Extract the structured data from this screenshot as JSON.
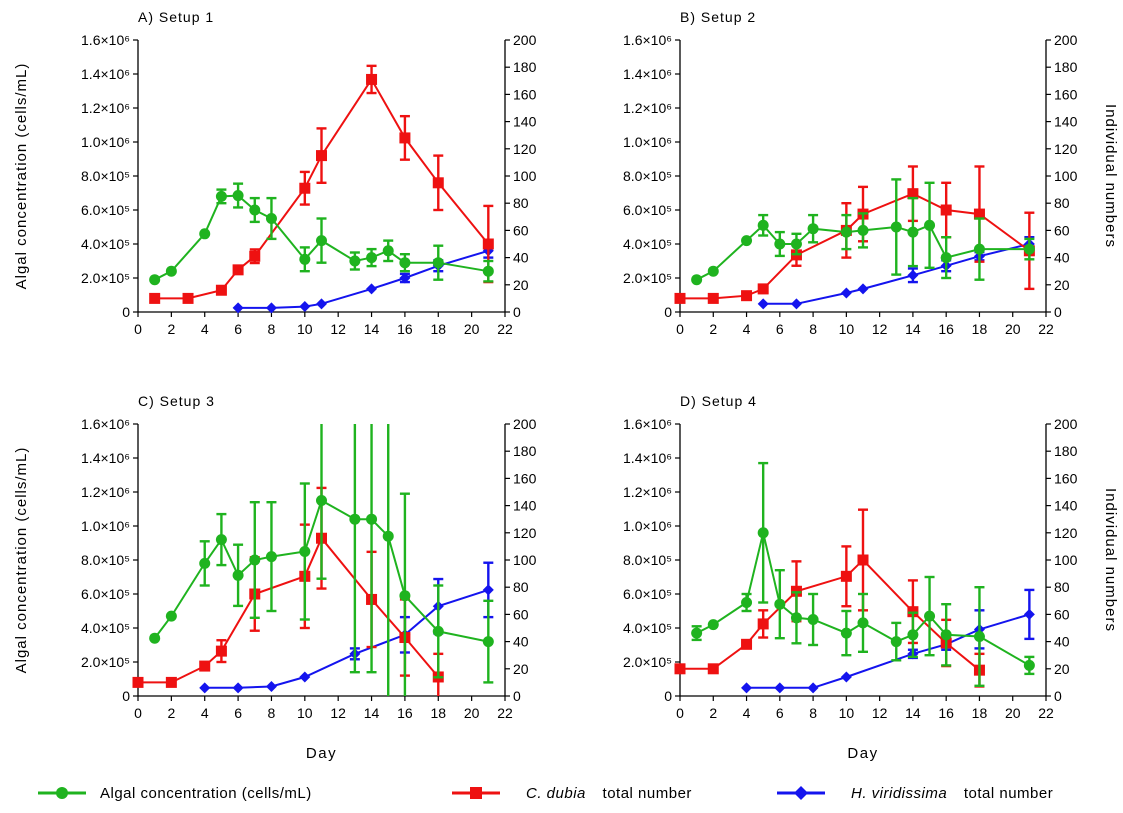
{
  "chart_data": [
    {
      "type": "line",
      "title": "A) Setup 1",
      "xlabel": "",
      "ylabel_left": "Algal concentration (cells/mL)",
      "ylabel_right": "",
      "xlim": [
        0,
        22
      ],
      "ylim_left": [
        0,
        1600000
      ],
      "ylim_right": [
        0,
        200
      ],
      "x_ticks": [
        "0",
        "2",
        "4",
        "6",
        "8",
        "10",
        "12",
        "14",
        "16",
        "18",
        "20",
        "22"
      ],
      "y_left_ticks": [
        "0",
        "2.0×10⁵",
        "4.0×10⁵",
        "6.0×10⁵",
        "8.0×10⁵",
        "1.0×10⁶",
        "1.2×10⁶",
        "1.4×10⁶",
        "1.6×10⁶"
      ],
      "y_right_ticks": [
        "0",
        "20",
        "40",
        "60",
        "80",
        "100",
        "120",
        "140",
        "160",
        "180",
        "200"
      ],
      "series": [
        {
          "name": "Algal concentration (cells/mL)",
          "axis": "left",
          "x": [
            1,
            2,
            4,
            5,
            6,
            7,
            8,
            10,
            11,
            13,
            14,
            15,
            16,
            18,
            21
          ],
          "y": [
            190000,
            240000,
            460000,
            680000,
            685000,
            600000,
            550000,
            310000,
            420000,
            300000,
            320000,
            360000,
            290000,
            290000,
            240000
          ],
          "err": [
            0,
            0,
            0,
            40000,
            70000,
            70000,
            120000,
            70000,
            130000,
            50000,
            50000,
            60000,
            50000,
            100000,
            60000
          ]
        },
        {
          "name": "C. dubia total number",
          "axis": "right",
          "x": [
            1,
            3,
            5,
            6,
            7,
            10,
            11,
            14,
            16,
            18,
            21
          ],
          "y": [
            10,
            10,
            16,
            31,
            41,
            91,
            115,
            171,
            128,
            95,
            50
          ],
          "err": [
            0,
            0,
            0,
            0,
            5,
            12,
            20,
            10,
            16,
            20,
            28
          ]
        },
        {
          "name": "H. viridissima total number",
          "axis": "right",
          "x": [
            6,
            8,
            10,
            11,
            14,
            16,
            18,
            21
          ],
          "y": [
            3,
            3,
            4,
            6,
            17,
            25,
            34,
            45
          ],
          "err": [
            0,
            0,
            0,
            0,
            0,
            3,
            4,
            5
          ]
        }
      ]
    },
    {
      "type": "line",
      "title": "B) Setup 2",
      "xlabel": "",
      "ylabel_left": "",
      "ylabel_right": "Individual numbers",
      "xlim": [
        0,
        22
      ],
      "ylim_left": [
        0,
        1600000
      ],
      "ylim_right": [
        0,
        200
      ],
      "x_ticks": [
        "0",
        "2",
        "4",
        "6",
        "8",
        "10",
        "12",
        "14",
        "16",
        "18",
        "20",
        "22"
      ],
      "y_left_ticks": [
        "0",
        "2.0×10⁵",
        "4.0×10⁵",
        "6.0×10⁵",
        "8.0×10⁵",
        "1.0×10⁶",
        "1.2×10⁶",
        "1.4×10⁶",
        "1.6×10⁶"
      ],
      "y_right_ticks": [
        "0",
        "20",
        "40",
        "60",
        "80",
        "100",
        "120",
        "140",
        "160",
        "180",
        "200"
      ],
      "series": [
        {
          "name": "Algal concentration (cells/mL)",
          "axis": "left",
          "x": [
            1,
            2,
            4,
            5,
            6,
            7,
            8,
            10,
            11,
            13,
            14,
            15,
            16,
            18,
            21
          ],
          "y": [
            190000,
            240000,
            420000,
            510000,
            400000,
            400000,
            490000,
            470000,
            480000,
            500000,
            470000,
            510000,
            320000,
            370000,
            370000
          ],
          "err": [
            0,
            0,
            0,
            60000,
            70000,
            60000,
            80000,
            100000,
            100000,
            280000,
            200000,
            250000,
            120000,
            180000,
            60000
          ]
        },
        {
          "name": "C. dubia total number",
          "axis": "right",
          "x": [
            0,
            2,
            4,
            5,
            7,
            10,
            11,
            14,
            16,
            18,
            21
          ],
          "y": [
            10,
            10,
            12,
            17,
            42,
            60,
            72,
            87,
            75,
            72,
            45
          ],
          "err": [
            0,
            0,
            0,
            3,
            8,
            20,
            20,
            20,
            20,
            35,
            28
          ]
        },
        {
          "name": "H. viridissima total number",
          "axis": "right",
          "x": [
            5,
            7,
            10,
            11,
            14,
            16,
            18,
            21
          ],
          "y": [
            6,
            6,
            14,
            17,
            27,
            34,
            41,
            50
          ],
          "err": [
            0,
            0,
            0,
            0,
            5,
            4,
            3,
            5
          ]
        }
      ]
    },
    {
      "type": "line",
      "title": "C) Setup 3",
      "xlabel": "Day",
      "ylabel_left": "Algal concentration (cells/mL)",
      "ylabel_right": "",
      "xlim": [
        0,
        22
      ],
      "ylim_left": [
        0,
        1600000
      ],
      "ylim_right": [
        0,
        200
      ],
      "x_ticks": [
        "0",
        "2",
        "4",
        "6",
        "8",
        "10",
        "12",
        "14",
        "16",
        "18",
        "20",
        "22"
      ],
      "y_left_ticks": [
        "0",
        "2.0×10⁵",
        "4.0×10⁵",
        "6.0×10⁵",
        "8.0×10⁵",
        "1.0×10⁶",
        "1.2×10⁶",
        "1.4×10⁶",
        "1.6×10⁶"
      ],
      "y_right_ticks": [
        "0",
        "20",
        "40",
        "60",
        "80",
        "100",
        "120",
        "140",
        "160",
        "180",
        "200"
      ],
      "series": [
        {
          "name": "Algal concentration (cells/mL)",
          "axis": "left",
          "x": [
            1,
            2,
            4,
            5,
            6,
            7,
            8,
            10,
            11,
            13,
            14,
            15,
            16,
            18,
            21
          ],
          "y": [
            340000,
            470000,
            780000,
            920000,
            710000,
            800000,
            820000,
            850000,
            1150000,
            1040000,
            1040000,
            940000,
            590000,
            380000,
            320000
          ],
          "err": [
            0,
            0,
            130000,
            150000,
            180000,
            340000,
            320000,
            400000,
            460000,
            900000,
            900000,
            950000,
            600000,
            270000,
            240000
          ]
        },
        {
          "name": "C. dubia total number",
          "axis": "right",
          "x": [
            0,
            2,
            4,
            5,
            7,
            10,
            11,
            14,
            16,
            18
          ],
          "y": [
            10,
            10,
            22,
            33,
            75,
            88,
            116,
            71,
            43,
            14
          ],
          "err": [
            0,
            0,
            0,
            8,
            27,
            38,
            37,
            35,
            28,
            17
          ]
        },
        {
          "name": "H. viridissima total number",
          "axis": "right",
          "x": [
            4,
            6,
            8,
            10,
            13,
            16,
            18,
            21
          ],
          "y": [
            6,
            6,
            7,
            14,
            31,
            45,
            66,
            78
          ],
          "err": [
            0,
            0,
            0,
            0,
            4,
            13,
            20,
            20
          ]
        }
      ]
    },
    {
      "type": "line",
      "title": "D) Setup 4",
      "xlabel": "Day",
      "ylabel_left": "",
      "ylabel_right": "Individual numbers",
      "xlim": [
        0,
        22
      ],
      "ylim_left": [
        0,
        1600000
      ],
      "ylim_right": [
        0,
        200
      ],
      "x_ticks": [
        "0",
        "2",
        "4",
        "6",
        "8",
        "10",
        "12",
        "14",
        "16",
        "18",
        "20",
        "22"
      ],
      "y_left_ticks": [
        "0",
        "2.0×10⁵",
        "4.0×10⁵",
        "6.0×10⁵",
        "8.0×10⁵",
        "1.0×10⁶",
        "1.2×10⁶",
        "1.4×10⁶",
        "1.6×10⁶"
      ],
      "y_right_ticks": [
        "0",
        "20",
        "40",
        "60",
        "80",
        "100",
        "120",
        "140",
        "160",
        "180",
        "200"
      ],
      "series": [
        {
          "name": "Algal concentration (cells/mL)",
          "axis": "left",
          "x": [
            1,
            2,
            4,
            5,
            6,
            7,
            8,
            10,
            11,
            13,
            14,
            15,
            16,
            18,
            21
          ],
          "y": [
            370000,
            420000,
            550000,
            960000,
            540000,
            460000,
            450000,
            370000,
            430000,
            320000,
            360000,
            470000,
            360000,
            350000,
            180000
          ],
          "err": [
            40000,
            0,
            50000,
            410000,
            200000,
            150000,
            150000,
            130000,
            170000,
            110000,
            130000,
            230000,
            180000,
            290000,
            50000
          ]
        },
        {
          "name": "C. dubia total number",
          "axis": "right",
          "x": [
            0,
            2,
            4,
            5,
            7,
            10,
            11,
            14,
            16,
            18
          ],
          "y": [
            20,
            20,
            38,
            53,
            77,
            88,
            100,
            62,
            39,
            19
          ],
          "err": [
            0,
            0,
            0,
            10,
            22,
            22,
            37,
            23,
            17,
            12
          ]
        },
        {
          "name": "H. viridissima total number",
          "axis": "right",
          "x": [
            4,
            6,
            8,
            10,
            14,
            16,
            18,
            21
          ],
          "y": [
            6,
            6,
            6,
            14,
            31,
            38,
            49,
            60
          ],
          "err": [
            0,
            0,
            0,
            0,
            3,
            4,
            14,
            18
          ]
        }
      ]
    }
  ],
  "legend": {
    "algal_label": "Algal concentration (cells/mL)",
    "dubia_italic": "C. dubia",
    "dubia_rest": " total number",
    "hydra_italic": "H. viridissima",
    "hydra_rest": " total number"
  },
  "colors": {
    "algal": "#1fb31f",
    "dubia": "#ee1111",
    "hydra": "#1414ee",
    "axis": "#000000"
  }
}
